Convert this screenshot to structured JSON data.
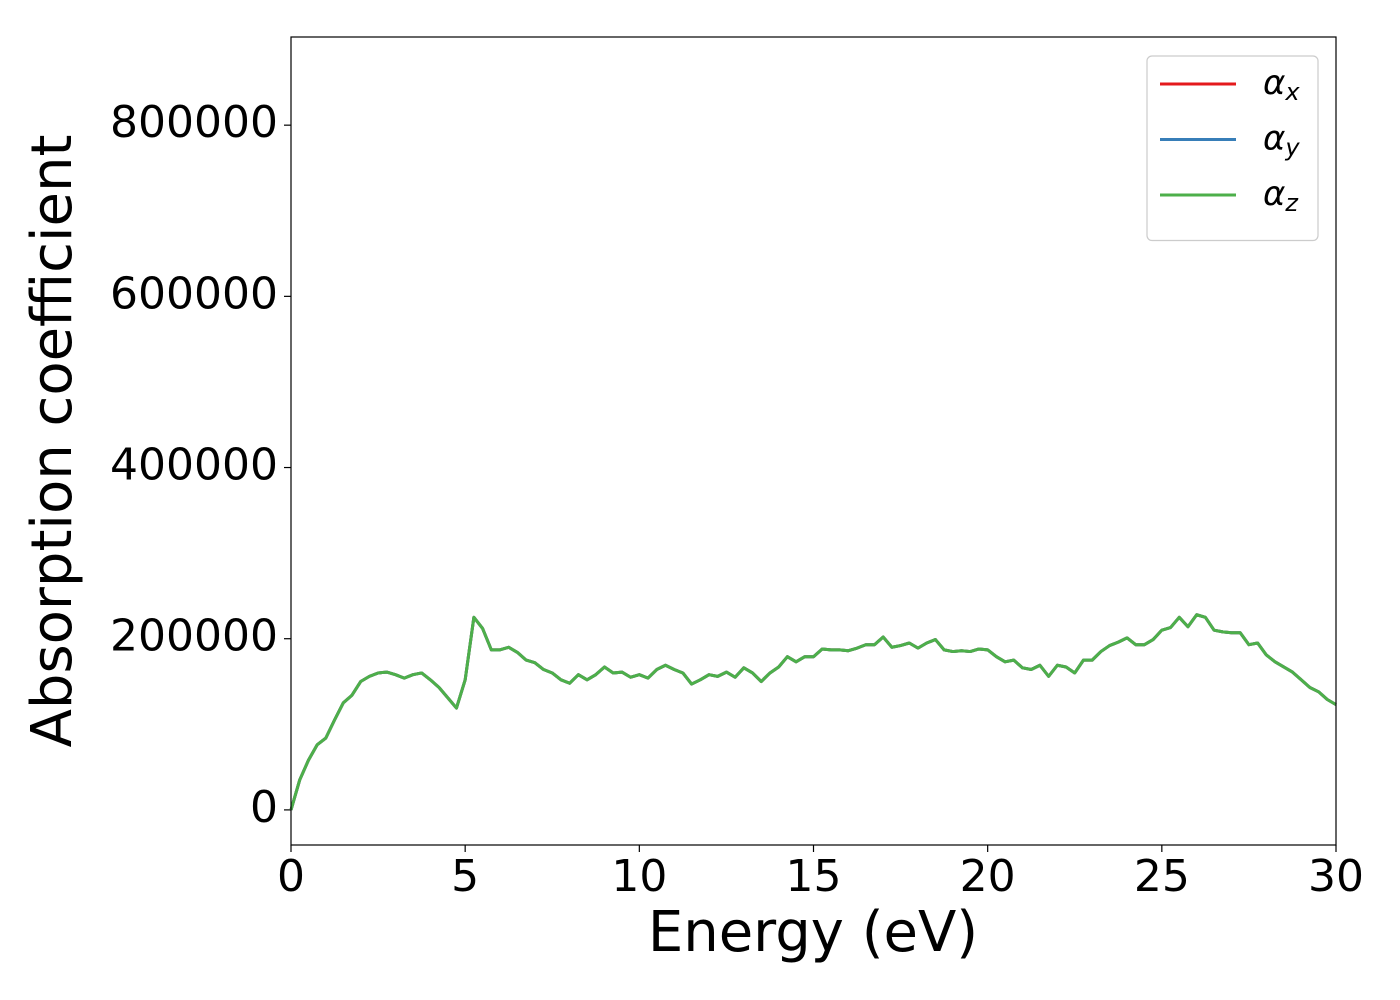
{
  "chart_data": {
    "type": "line",
    "xlabel": "Energy (eV)",
    "ylabel": "Absorption coefficient",
    "x": [
      0,
      0.25,
      0.5,
      0.75,
      1,
      1.25,
      1.5,
      1.75,
      2,
      2.25,
      2.5,
      2.75,
      3,
      3.25,
      3.5,
      3.75,
      4,
      4.25,
      4.5,
      4.75,
      5,
      5.25,
      5.5,
      5.75,
      6,
      6.25,
      6.5,
      6.75,
      7,
      7.25,
      7.5,
      7.75,
      8,
      8.25,
      8.5,
      8.75,
      9,
      9.25,
      9.5,
      9.75,
      10,
      10.25,
      10.5,
      10.75,
      11,
      11.25,
      11.5,
      11.75,
      12,
      12.25,
      12.5,
      12.75,
      13,
      13.25,
      13.5,
      13.75,
      14,
      14.25,
      14.5,
      14.75,
      15,
      15.25,
      15.5,
      15.75,
      16,
      16.25,
      16.5,
      16.75,
      17,
      17.25,
      17.5,
      17.75,
      18,
      18.25,
      18.5,
      18.75,
      19,
      19.25,
      19.5,
      19.75,
      20,
      20.25,
      20.5,
      20.75,
      21,
      21.25,
      21.5,
      21.75,
      22,
      22.25,
      22.5,
      22.75,
      23,
      23.25,
      23.5,
      23.75,
      24,
      24.25,
      24.5,
      24.75,
      25,
      25.25,
      25.5,
      25.75,
      26,
      26.25,
      26.5,
      26.75,
      27,
      27.25,
      27.5,
      27.75,
      28,
      28.25,
      28.5,
      28.75,
      29,
      29.25,
      29.5,
      29.75,
      30
    ],
    "series": [
      {
        "name": "αx",
        "color": "#e41a1c",
        "values": [
          0,
          35000,
          58000,
          76000,
          84000,
          105000,
          125000,
          134000,
          150000,
          156000,
          160000,
          161000,
          158000,
          154000,
          158000,
          160000,
          152000,
          143000,
          131000,
          119000,
          152000,
          225000,
          212000,
          187000,
          187000,
          190000,
          184000,
          175000,
          172000,
          164000,
          160000,
          152000,
          148000,
          158000,
          152000,
          158000,
          167000,
          160000,
          161000,
          155000,
          158000,
          154000,
          164000,
          169000,
          164000,
          160000,
          147000,
          152000,
          158000,
          156000,
          161000,
          155000,
          166000,
          160000,
          150000,
          160000,
          167000,
          179000,
          173000,
          179000,
          179000,
          188000,
          187000,
          187000,
          186000,
          189000,
          193000,
          193000,
          202000,
          190000,
          192000,
          195000,
          189000,
          195000,
          199000,
          187000,
          185000,
          186000,
          185000,
          188000,
          187000,
          179000,
          173000,
          175000,
          166000,
          164000,
          169000,
          156000,
          169000,
          167000,
          160000,
          175000,
          175000,
          185000,
          192000,
          196000,
          201000,
          193000,
          193000,
          199000,
          210000,
          213000,
          225000,
          214000,
          228000,
          225000,
          210000,
          208000,
          207000,
          207000,
          193000,
          195000,
          181000,
          173000,
          167000,
          161000,
          152000,
          143000,
          138000,
          129000,
          123000
        ]
      },
      {
        "name": "αy",
        "color": "#377eb8",
        "values": [
          0,
          35000,
          58000,
          76000,
          84000,
          105000,
          125000,
          134000,
          150000,
          156000,
          160000,
          161000,
          158000,
          154000,
          158000,
          160000,
          152000,
          143000,
          131000,
          119000,
          152000,
          225000,
          212000,
          187000,
          187000,
          190000,
          184000,
          175000,
          172000,
          164000,
          160000,
          152000,
          148000,
          158000,
          152000,
          158000,
          167000,
          160000,
          161000,
          155000,
          158000,
          154000,
          164000,
          169000,
          164000,
          160000,
          147000,
          152000,
          158000,
          156000,
          161000,
          155000,
          166000,
          160000,
          150000,
          160000,
          167000,
          179000,
          173000,
          179000,
          179000,
          188000,
          187000,
          187000,
          186000,
          189000,
          193000,
          193000,
          202000,
          190000,
          192000,
          195000,
          189000,
          195000,
          199000,
          187000,
          185000,
          186000,
          185000,
          188000,
          187000,
          179000,
          173000,
          175000,
          166000,
          164000,
          169000,
          156000,
          169000,
          167000,
          160000,
          175000,
          175000,
          185000,
          192000,
          196000,
          201000,
          193000,
          193000,
          199000,
          210000,
          213000,
          225000,
          214000,
          228000,
          225000,
          210000,
          208000,
          207000,
          207000,
          193000,
          195000,
          181000,
          173000,
          167000,
          161000,
          152000,
          143000,
          138000,
          129000,
          123000
        ]
      },
      {
        "name": "αz",
        "color": "#4daf4a",
        "values": [
          0,
          35000,
          58000,
          76000,
          84000,
          105000,
          125000,
          134000,
          150000,
          156000,
          160000,
          161000,
          158000,
          154000,
          158000,
          160000,
          152000,
          143000,
          131000,
          119000,
          152000,
          225000,
          212000,
          187000,
          187000,
          190000,
          184000,
          175000,
          172000,
          164000,
          160000,
          152000,
          148000,
          158000,
          152000,
          158000,
          167000,
          160000,
          161000,
          155000,
          158000,
          154000,
          164000,
          169000,
          164000,
          160000,
          147000,
          152000,
          158000,
          156000,
          161000,
          155000,
          166000,
          160000,
          150000,
          160000,
          167000,
          179000,
          173000,
          179000,
          179000,
          188000,
          187000,
          187000,
          186000,
          189000,
          193000,
          193000,
          202000,
          190000,
          192000,
          195000,
          189000,
          195000,
          199000,
          187000,
          185000,
          186000,
          185000,
          188000,
          187000,
          179000,
          173000,
          175000,
          166000,
          164000,
          169000,
          156000,
          169000,
          167000,
          160000,
          175000,
          175000,
          185000,
          192000,
          196000,
          201000,
          193000,
          193000,
          199000,
          210000,
          213000,
          225000,
          214000,
          228000,
          225000,
          210000,
          208000,
          207000,
          207000,
          193000,
          195000,
          181000,
          173000,
          167000,
          161000,
          152000,
          143000,
          138000,
          129000,
          123000
        ]
      }
    ],
    "xlim": [
      0,
      30
    ],
    "xticks": [
      0,
      5,
      10,
      15,
      20,
      25,
      30
    ],
    "ylim": [
      -41000,
      903000
    ],
    "yticks": [
      0,
      200000,
      400000,
      600000,
      800000
    ],
    "grid": false,
    "legend": "upper right"
  }
}
